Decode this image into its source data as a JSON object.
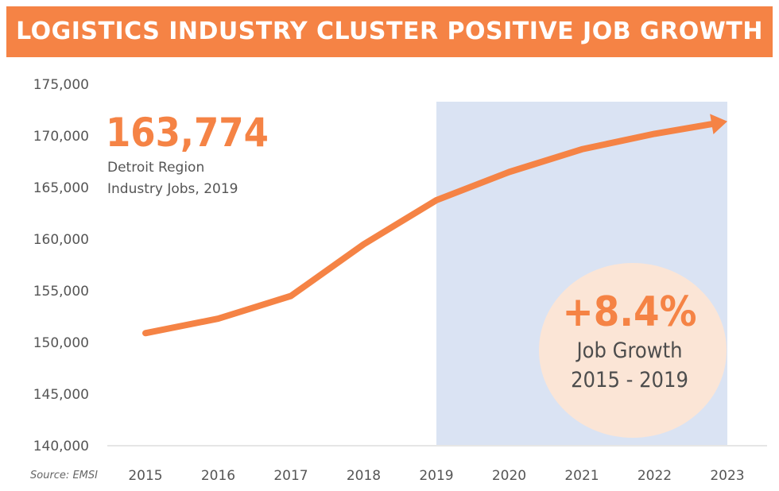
{
  "chart_data": {
    "type": "line",
    "title": "LOGISTICS INDUSTRY CLUSTER POSITIVE JOB GROWTH",
    "x": [
      "2015",
      "2016",
      "2017",
      "2018",
      "2019",
      "2020",
      "2021",
      "2022",
      "2023"
    ],
    "series": [
      {
        "values": [
          150900,
          152300,
          154500,
          159500,
          163774,
          166500,
          168700,
          170200,
          171400
        ]
      }
    ],
    "ylim": [
      140000,
      175000
    ],
    "yticks": [
      "175,000",
      "170,000",
      "165,000",
      "160,000",
      "155,000",
      "150,000",
      "145,000",
      "140,000"
    ],
    "ytick_values": [
      175000,
      170000,
      165000,
      160000,
      155000,
      150000,
      145000,
      140000
    ],
    "highlight_range": [
      "2019",
      "2023"
    ],
    "grid": false,
    "source": "Source: EMSI",
    "annotations": {
      "big_number": "163,774",
      "big_number_line1": "Detroit Region",
      "big_number_line2": "Industry Jobs, 2019",
      "growth": "+8.4%",
      "growth_line1": "Job Growth",
      "growth_line2": "2015 - 2019"
    },
    "colors": {
      "accent": "#f58345",
      "highlight": "#dae3f3",
      "bubble": "#fbe5d6",
      "text": "#4d4d4d"
    }
  }
}
